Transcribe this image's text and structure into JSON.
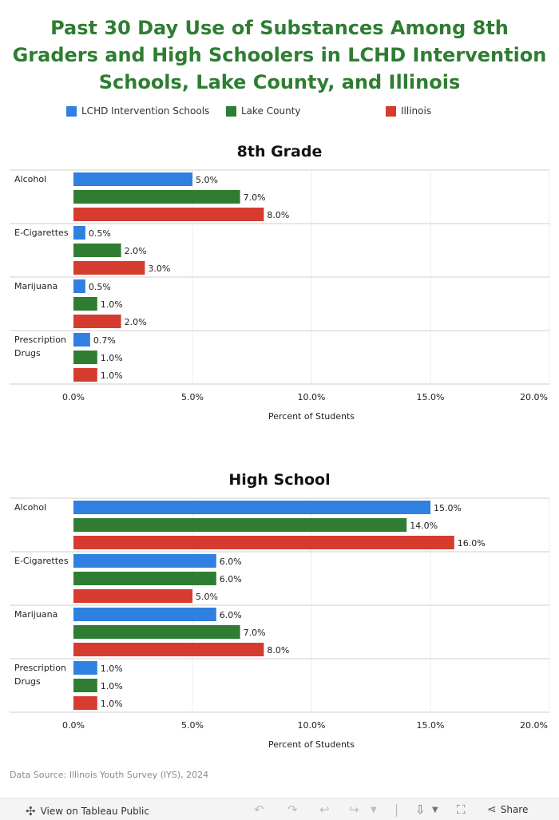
{
  "title": "Past 30 Day Use of Substances Among 8th Graders and High Schoolers in LCHD Intervention Schools, Lake County, and Illinois",
  "legend": [
    {
      "name": "LCHD Intervention Schools",
      "color": "#2f80e0"
    },
    {
      "name": "Lake County",
      "color": "#2e7d32"
    },
    {
      "name": "Illinois",
      "color": "#d63b30"
    }
  ],
  "chart_data": [
    {
      "type": "bar",
      "orientation": "horizontal",
      "title": "8th Grade",
      "xlabel": "Percent of Students",
      "xlim": [
        0,
        20
      ],
      "xticks": [
        "0.0%",
        "5.0%",
        "10.0%",
        "15.0%",
        "20.0%"
      ],
      "categories": [
        [
          "Alcohol"
        ],
        [
          "E-Cigarettes"
        ],
        [
          "Marijuana"
        ],
        [
          "Prescription",
          "Drugs"
        ]
      ],
      "series": [
        {
          "name": "LCHD Intervention Schools",
          "values": [
            5.0,
            0.5,
            0.5,
            0.7
          ],
          "labels": [
            "5.0%",
            "0.5%",
            "0.5%",
            "0.7%"
          ]
        },
        {
          "name": "Lake County",
          "values": [
            7.0,
            2.0,
            1.0,
            1.0
          ],
          "labels": [
            "7.0%",
            "2.0%",
            "1.0%",
            "1.0%"
          ]
        },
        {
          "name": "Illinois",
          "values": [
            8.0,
            3.0,
            2.0,
            1.0
          ],
          "labels": [
            "8.0%",
            "3.0%",
            "2.0%",
            "1.0%"
          ]
        }
      ]
    },
    {
      "type": "bar",
      "orientation": "horizontal",
      "title": "High School",
      "xlabel": "Percent of Students",
      "xlim": [
        0,
        20
      ],
      "xticks": [
        "0.0%",
        "5.0%",
        "10.0%",
        "15.0%",
        "20.0%"
      ],
      "categories": [
        [
          "Alcohol"
        ],
        [
          "E-Cigarettes"
        ],
        [
          "Marijuana"
        ],
        [
          "Prescription",
          "Drugs"
        ]
      ],
      "series": [
        {
          "name": "LCHD Intervention Schools",
          "values": [
            15.0,
            6.0,
            6.0,
            1.0
          ],
          "labels": [
            "15.0%",
            "6.0%",
            "6.0%",
            "1.0%"
          ]
        },
        {
          "name": "Lake County",
          "values": [
            14.0,
            6.0,
            7.0,
            1.0
          ],
          "labels": [
            "14.0%",
            "6.0%",
            "7.0%",
            "1.0%"
          ]
        },
        {
          "name": "Illinois",
          "values": [
            16.0,
            5.0,
            8.0,
            1.0
          ],
          "labels": [
            "16.0%",
            "5.0%",
            "8.0%",
            "1.0%"
          ]
        }
      ]
    }
  ],
  "source": "Data Source: Illinois Youth Survey (IYS), 2024",
  "footer": {
    "tableau_label": "View on Tableau Public",
    "share_label": "Share"
  }
}
